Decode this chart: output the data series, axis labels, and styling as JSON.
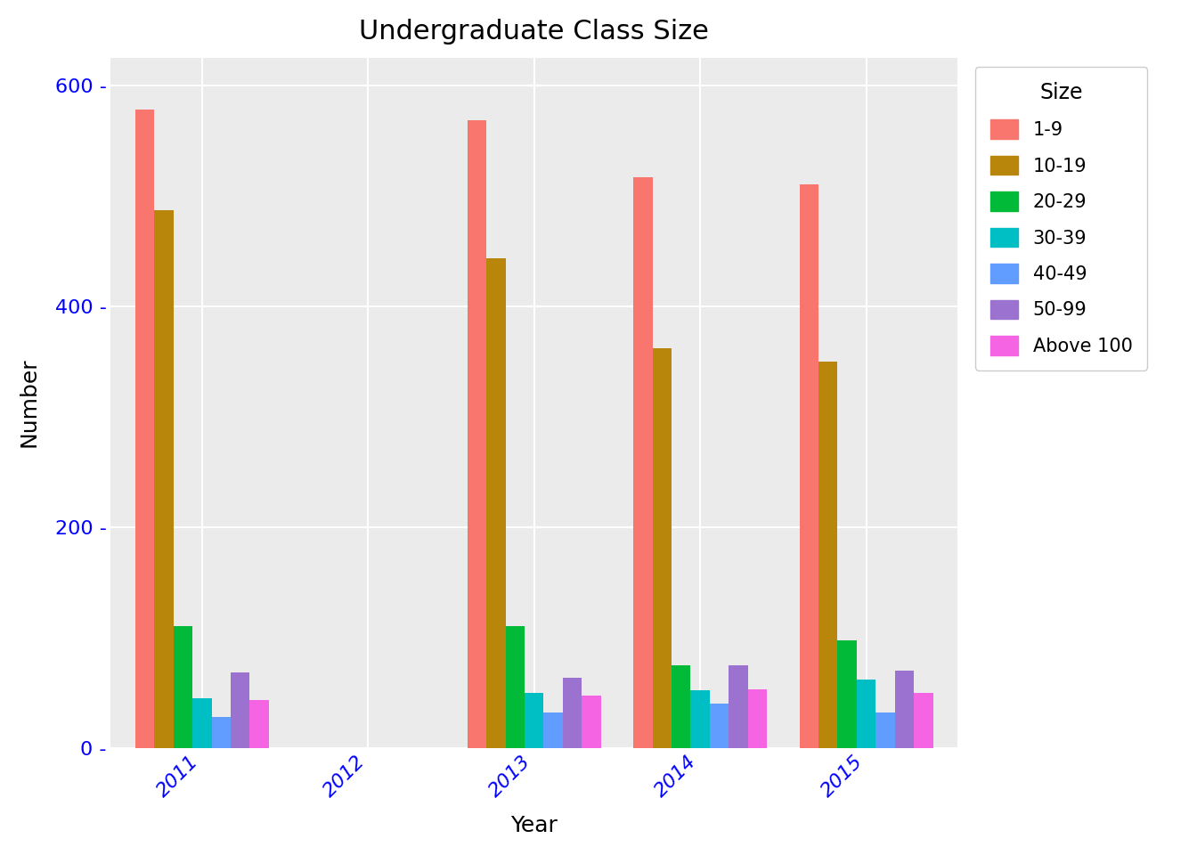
{
  "title": "Undergraduate Class Size",
  "xlabel": "Year",
  "ylabel": "Number",
  "years": [
    "2011",
    "2012",
    "2013",
    "2014",
    "2015"
  ],
  "size_labels": [
    "1-9",
    "10-19",
    "20-29",
    "30-39",
    "40-49",
    "50-99",
    "Above 100"
  ],
  "colors": [
    "#F8766D",
    "#B8860B",
    "#00BA38",
    "#00BFC4",
    "#619CFF",
    "#9B72CF",
    "#F564E3"
  ],
  "data": {
    "2011": [
      578,
      487,
      110,
      45,
      28,
      68,
      43
    ],
    "2012": [
      0,
      0,
      0,
      0,
      0,
      0,
      0
    ],
    "2013": [
      568,
      443,
      110,
      50,
      32,
      63,
      47
    ],
    "2014": [
      517,
      362,
      75,
      52,
      40,
      75,
      53
    ],
    "2015": [
      510,
      350,
      97,
      62,
      32,
      70,
      50
    ]
  },
  "ylim": [
    0,
    625
  ],
  "yticks": [
    0,
    200,
    400,
    600
  ],
  "plot_bg_color": "#EBEBEB",
  "fig_bg_color": "#FFFFFF",
  "title_fontsize": 22,
  "axis_label_fontsize": 18,
  "tick_fontsize": 16,
  "legend_fontsize": 15,
  "tick_color": "#0000FF",
  "grid_color": "#FFFFFF",
  "bar_width": 0.115
}
